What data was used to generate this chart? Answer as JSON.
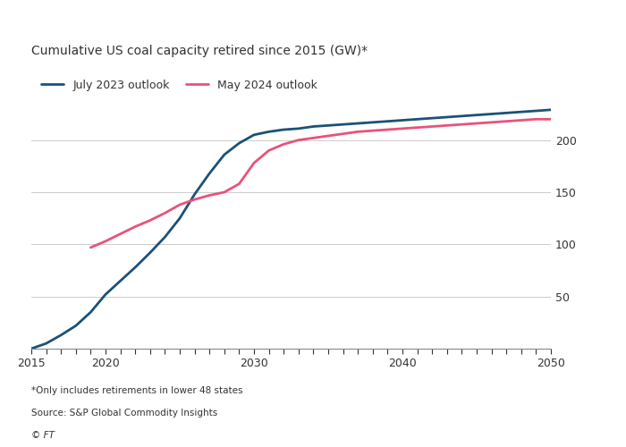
{
  "title": "Cumulative US coal capacity retired since 2015 (GW)*",
  "legend": [
    "July 2023 outlook",
    "May 2024 outlook"
  ],
  "line_colors": [
    "#1a5276",
    "#e8537a"
  ],
  "footnote1": "*Only includes retirements in lower 48 states",
  "footnote2": "Source: S&P Global Commodity Insights",
  "footnote3": "© FT",
  "xlim": [
    2015,
    2050
  ],
  "ylim": [
    0,
    240
  ],
  "yticks": [
    50,
    100,
    150,
    200
  ],
  "xticks": [
    2015,
    2016,
    2017,
    2018,
    2019,
    2020,
    2021,
    2022,
    2023,
    2024,
    2025,
    2026,
    2027,
    2028,
    2029,
    2030,
    2031,
    2032,
    2033,
    2034,
    2035,
    2036,
    2037,
    2038,
    2039,
    2040,
    2041,
    2042,
    2043,
    2044,
    2045,
    2046,
    2047,
    2048,
    2049,
    2050
  ],
  "xtick_labels": [
    2015,
    2020,
    2030,
    2040,
    2050
  ],
  "blue_x": [
    2015,
    2016,
    2017,
    2018,
    2019,
    2020,
    2021,
    2022,
    2023,
    2024,
    2025,
    2026,
    2027,
    2028,
    2029,
    2030,
    2031,
    2032,
    2033,
    2034,
    2035,
    2036,
    2037,
    2038,
    2039,
    2040,
    2041,
    2042,
    2043,
    2044,
    2045,
    2046,
    2047,
    2048,
    2049,
    2050
  ],
  "blue_y": [
    0,
    5,
    13,
    22,
    35,
    52,
    65,
    78,
    92,
    107,
    125,
    148,
    168,
    186,
    197,
    205,
    208,
    210,
    211,
    213,
    214,
    215,
    216,
    217,
    218,
    219,
    220,
    221,
    222,
    223,
    224,
    225,
    226,
    227,
    228,
    229
  ],
  "pink_x": [
    2019,
    2020,
    2021,
    2022,
    2023,
    2024,
    2025,
    2026,
    2027,
    2028,
    2029,
    2030,
    2031,
    2032,
    2033,
    2034,
    2035,
    2036,
    2037,
    2038,
    2039,
    2040,
    2041,
    2042,
    2043,
    2044,
    2045,
    2046,
    2047,
    2048,
    2049,
    2050
  ],
  "pink_y": [
    97,
    103,
    110,
    117,
    123,
    130,
    138,
    143,
    147,
    150,
    158,
    178,
    190,
    196,
    200,
    202,
    204,
    206,
    208,
    209,
    210,
    211,
    212,
    213,
    214,
    215,
    216,
    217,
    218,
    219,
    220,
    220
  ],
  "bg_color": "#ffffff",
  "text_color": "#333333",
  "grid_color": "#cccccc"
}
